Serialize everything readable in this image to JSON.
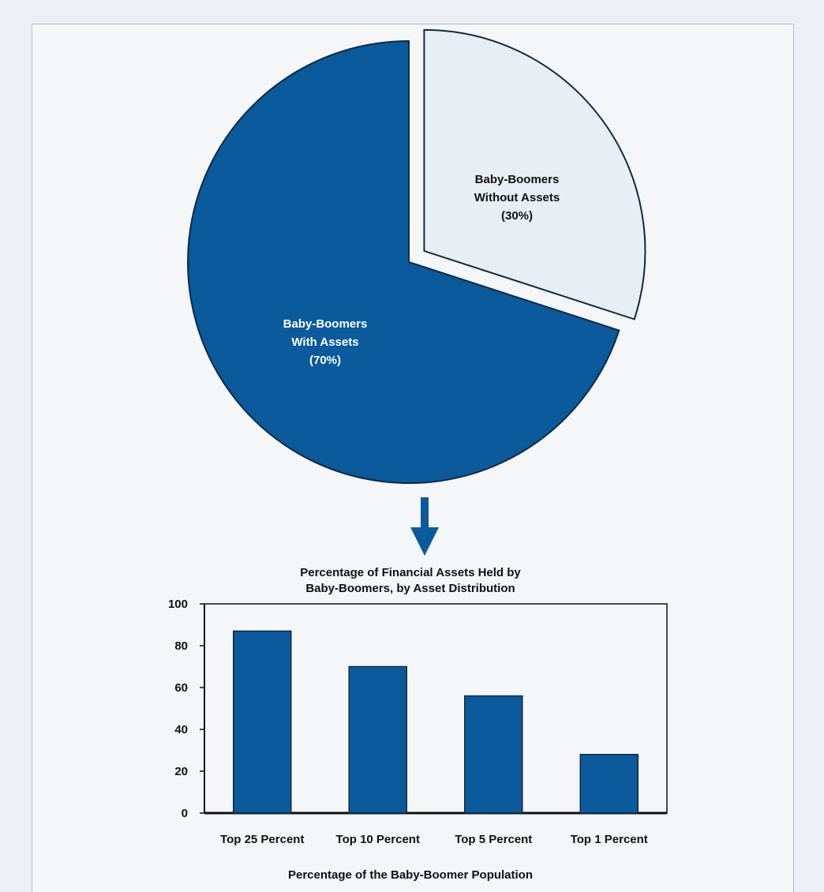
{
  "colors": {
    "primary": "#0a5a9c",
    "light_slice": "#e8eef4",
    "outline": "#0d2a45"
  },
  "pie": {
    "slices": [
      {
        "label_lines": [
          "Baby-Boomers",
          "With Assets",
          "(70%)"
        ],
        "value": 70
      },
      {
        "label_lines": [
          "Baby-Boomers",
          "Without Assets",
          "(30%)"
        ],
        "value": 30
      }
    ]
  },
  "chart_data": [
    {
      "type": "pie",
      "categories": [
        "Baby-Boomers With Assets",
        "Baby-Boomers Without Assets"
      ],
      "values": [
        70,
        30
      ]
    },
    {
      "type": "bar",
      "title_lines": [
        "Percentage of Financial Assets Held by",
        "Baby-Boomers, by Asset Distribution"
      ],
      "categories": [
        "Top 25 Percent",
        "Top 10 Percent",
        "Top 5 Percent",
        "Top 1 Percent"
      ],
      "values": [
        87,
        70,
        56,
        28
      ],
      "xlabel": "Percentage of the Baby-Boomer Population",
      "ylabel": "",
      "ylim": [
        0,
        100
      ],
      "yticks": [
        0,
        20,
        40,
        60,
        80,
        100
      ],
      "grid": false
    }
  ]
}
